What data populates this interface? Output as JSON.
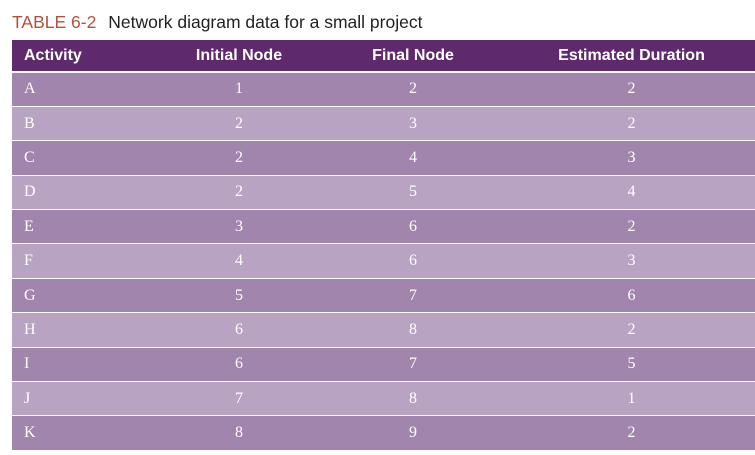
{
  "caption": {
    "label": "TABLE 6-2",
    "title": "Network diagram data for a small project"
  },
  "colors": {
    "label": "#b3523a",
    "header_bg": "#5e2a6c",
    "row_dark": "#a285ad",
    "row_light": "#b9a3c2",
    "text": "#ffffff"
  },
  "table": {
    "headers": [
      "Activity",
      "Initial Node",
      "Final Node",
      "Estimated Duration"
    ],
    "rows": [
      [
        "A",
        "1",
        "2",
        "2"
      ],
      [
        "B",
        "2",
        "3",
        "2"
      ],
      [
        "C",
        "2",
        "4",
        "3"
      ],
      [
        "D",
        "2",
        "5",
        "4"
      ],
      [
        "E",
        "3",
        "6",
        "2"
      ],
      [
        "F",
        "4",
        "6",
        "3"
      ],
      [
        "G",
        "5",
        "7",
        "6"
      ],
      [
        "H",
        "6",
        "8",
        "2"
      ],
      [
        "I",
        "6",
        "7",
        "5"
      ],
      [
        "J",
        "7",
        "8",
        "1"
      ],
      [
        "K",
        "8",
        "9",
        "2"
      ]
    ]
  }
}
